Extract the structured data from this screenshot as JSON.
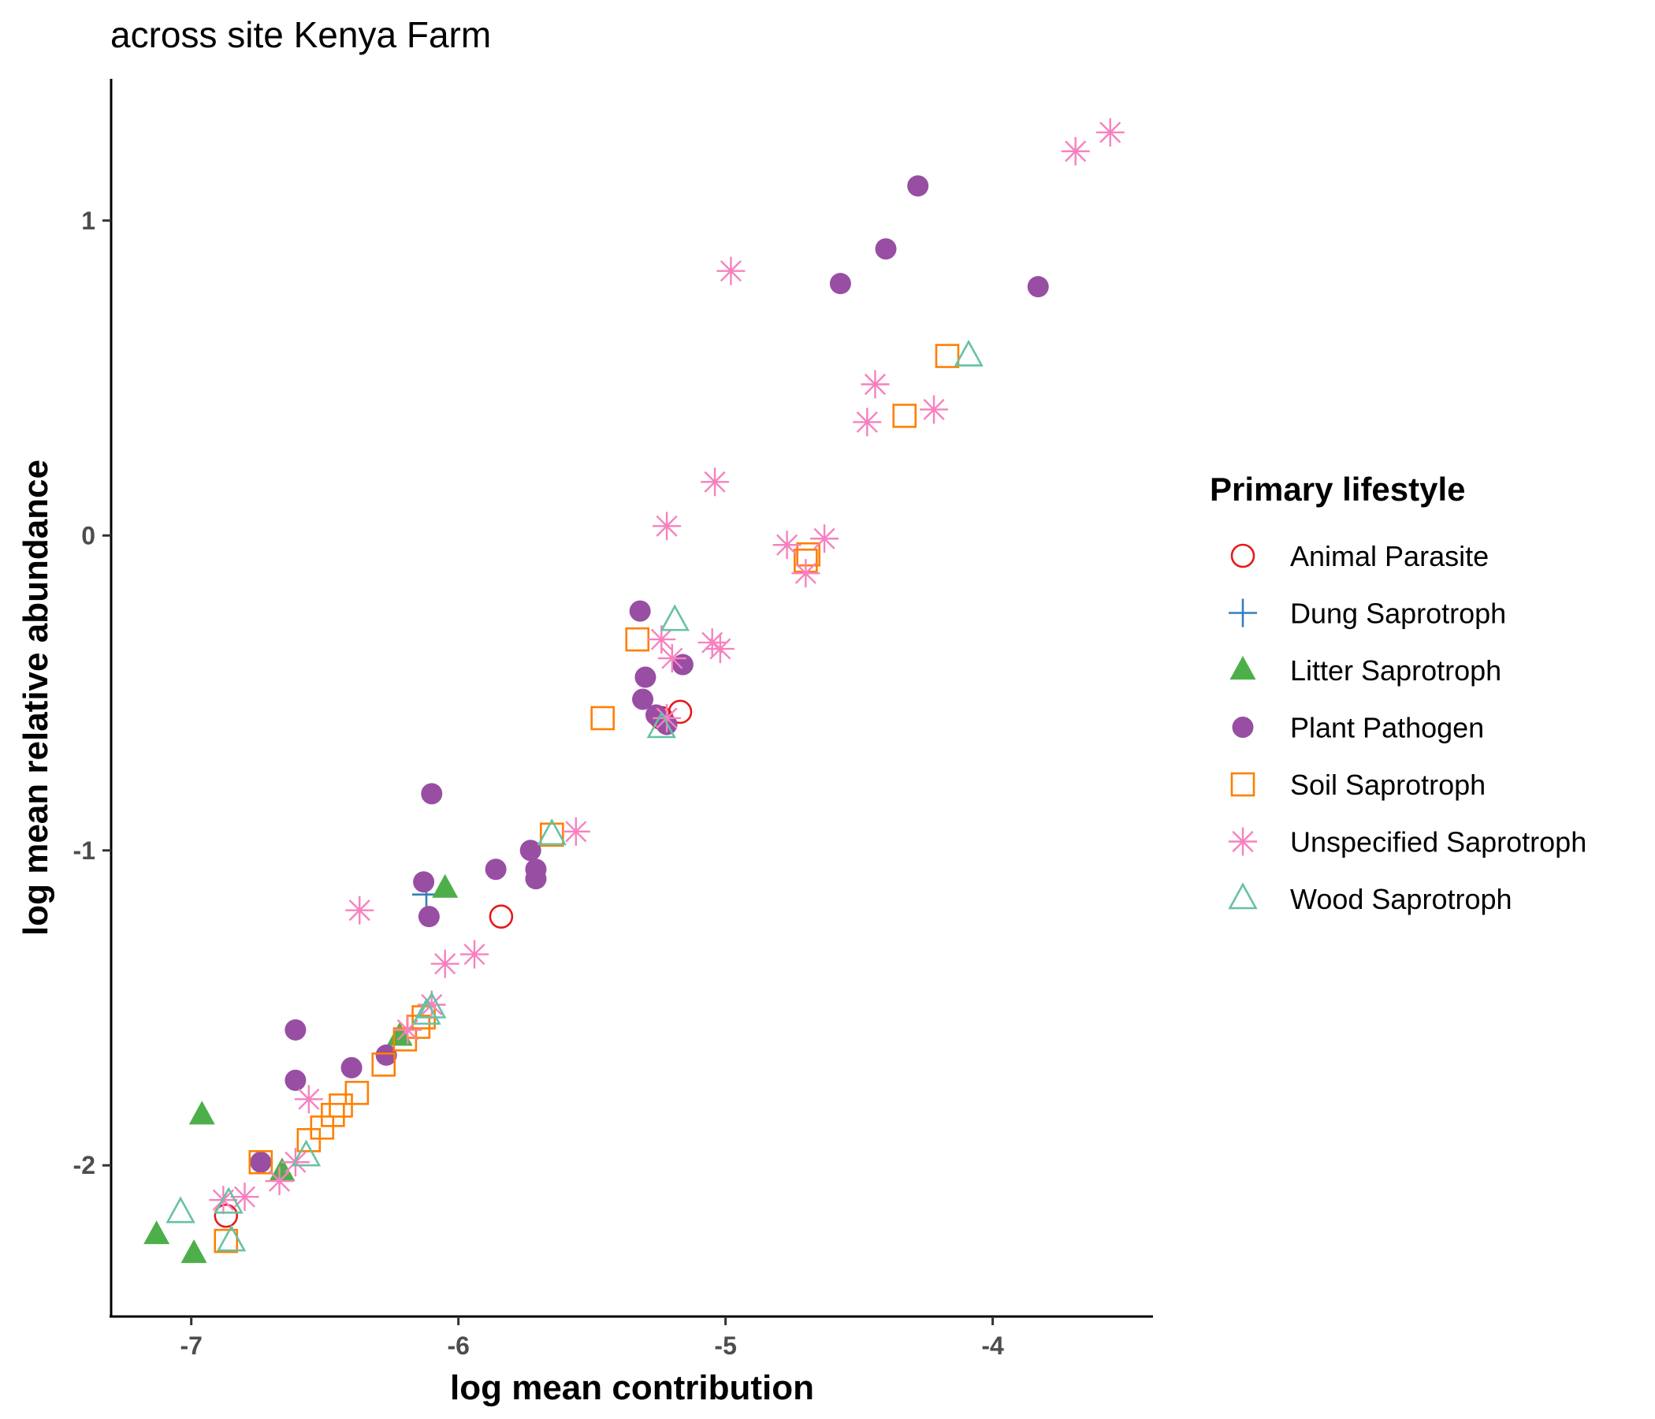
{
  "chart_data": {
    "type": "scatter",
    "title": "across site Kenya Farm",
    "xlabel": "log mean contribution",
    "ylabel": "log mean relative abundance",
    "xlim": [
      -7.3,
      -3.4
    ],
    "ylim": [
      -2.48,
      1.45
    ],
    "x_ticks": [
      -7,
      -6,
      -5,
      -4
    ],
    "x_tick_labels": [
      "-7",
      "-6",
      "-5",
      "-4"
    ],
    "y_ticks": [
      -2,
      -1,
      0,
      1
    ],
    "y_tick_labels": [
      "-2",
      "-1",
      "0",
      "1"
    ],
    "grid": false,
    "legend": {
      "title": "Primary lifestyle",
      "position": "right"
    },
    "series": [
      {
        "name": "Animal Parasite",
        "color": "#E41A1C",
        "shape": "open-circle",
        "points": [
          [
            -6.87,
            -2.16
          ],
          [
            -5.84,
            -1.21
          ],
          [
            -5.17,
            -0.56
          ],
          [
            -5.24,
            -0.58
          ]
        ]
      },
      {
        "name": "Dung Saprotroph",
        "color": "#377EB8",
        "shape": "plus",
        "points": [
          [
            -6.12,
            -1.14
          ]
        ]
      },
      {
        "name": "Litter Saprotroph",
        "color": "#4DAF4A",
        "shape": "filled-triangle",
        "points": [
          [
            -7.13,
            -2.22
          ],
          [
            -6.99,
            -2.28
          ],
          [
            -6.96,
            -1.84
          ],
          [
            -6.66,
            -2.02
          ],
          [
            -6.22,
            -1.59
          ],
          [
            -6.05,
            -1.12
          ]
        ]
      },
      {
        "name": "Plant Pathogen",
        "color": "#984EA3",
        "shape": "filled-circle",
        "points": [
          [
            -6.74,
            -1.99
          ],
          [
            -6.61,
            -1.57
          ],
          [
            -6.61,
            -1.73
          ],
          [
            -6.4,
            -1.69
          ],
          [
            -6.27,
            -1.65
          ],
          [
            -6.13,
            -1.1
          ],
          [
            -6.11,
            -1.21
          ],
          [
            -6.1,
            -0.82
          ],
          [
            -5.86,
            -1.06
          ],
          [
            -5.73,
            -1.0
          ],
          [
            -5.71,
            -1.06
          ],
          [
            -5.71,
            -1.09
          ],
          [
            -5.32,
            -0.24
          ],
          [
            -5.3,
            -0.45
          ],
          [
            -5.31,
            -0.52
          ],
          [
            -5.26,
            -0.57
          ],
          [
            -5.22,
            -0.6
          ],
          [
            -5.16,
            -0.41
          ],
          [
            -4.57,
            0.8
          ],
          [
            -4.4,
            0.91
          ],
          [
            -4.28,
            1.11
          ],
          [
            -3.83,
            0.79
          ]
        ]
      },
      {
        "name": "Soil Saprotroph",
        "color": "#FF7F00",
        "shape": "open-square",
        "points": [
          [
            -6.87,
            -2.24
          ],
          [
            -6.74,
            -1.99
          ],
          [
            -6.56,
            -1.92
          ],
          [
            -6.51,
            -1.88
          ],
          [
            -6.47,
            -1.84
          ],
          [
            -6.44,
            -1.81
          ],
          [
            -6.38,
            -1.77
          ],
          [
            -6.28,
            -1.68
          ],
          [
            -6.2,
            -1.6
          ],
          [
            -6.15,
            -1.56
          ],
          [
            -6.13,
            -1.53
          ],
          [
            -5.65,
            -0.95
          ],
          [
            -5.46,
            -0.58
          ],
          [
            -5.33,
            -0.33
          ],
          [
            -4.7,
            -0.08
          ],
          [
            -4.69,
            -0.06
          ],
          [
            -4.33,
            0.38
          ],
          [
            -4.17,
            0.57
          ]
        ]
      },
      {
        "name": "Unspecified Saprotroph",
        "color": "#F781BF",
        "shape": "asterisk",
        "points": [
          [
            -6.88,
            -2.11
          ],
          [
            -6.8,
            -2.1
          ],
          [
            -6.67,
            -2.05
          ],
          [
            -6.61,
            -1.99
          ],
          [
            -6.56,
            -1.79
          ],
          [
            -6.37,
            -1.19
          ],
          [
            -6.19,
            -1.57
          ],
          [
            -6.1,
            -1.49
          ],
          [
            -6.05,
            -1.36
          ],
          [
            -5.94,
            -1.33
          ],
          [
            -5.56,
            -0.94
          ],
          [
            -5.22,
            0.03
          ],
          [
            -5.24,
            -0.33
          ],
          [
            -5.2,
            -0.39
          ],
          [
            -5.22,
            -0.58
          ],
          [
            -5.05,
            -0.34
          ],
          [
            -5.04,
            0.17
          ],
          [
            -5.02,
            -0.36
          ],
          [
            -4.98,
            0.84
          ],
          [
            -4.77,
            -0.03
          ],
          [
            -4.7,
            -0.12
          ],
          [
            -4.63,
            -0.01
          ],
          [
            -4.47,
            0.36
          ],
          [
            -4.44,
            0.48
          ],
          [
            -4.22,
            0.4
          ],
          [
            -3.69,
            1.22
          ],
          [
            -3.56,
            1.28
          ]
        ]
      },
      {
        "name": "Wood Saprotroph",
        "color": "#66C2A5",
        "shape": "open-triangle",
        "points": [
          [
            -7.04,
            -2.15
          ],
          [
            -6.85,
            -2.24
          ],
          [
            -6.86,
            -2.12
          ],
          [
            -6.57,
            -1.97
          ],
          [
            -6.12,
            -1.52
          ],
          [
            -6.1,
            -1.5
          ],
          [
            -5.65,
            -0.95
          ],
          [
            -5.24,
            -0.61
          ],
          [
            -5.19,
            -0.27
          ],
          [
            -4.09,
            0.57
          ]
        ]
      }
    ]
  }
}
